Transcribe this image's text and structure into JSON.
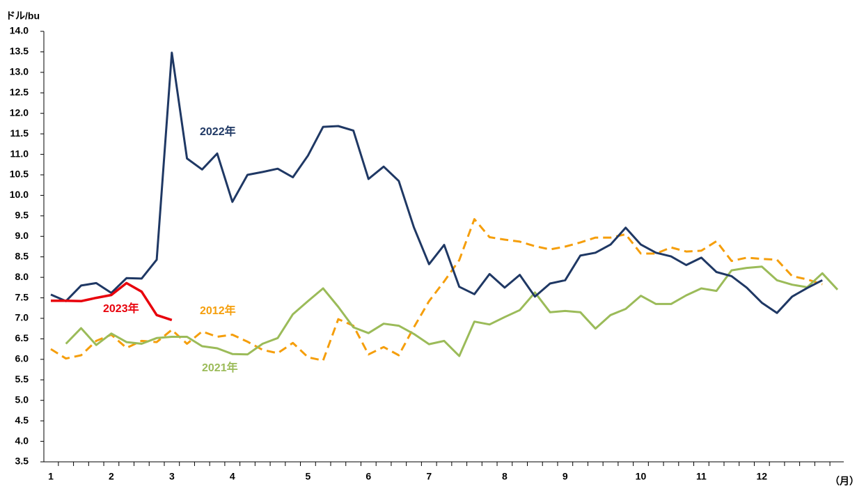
{
  "chart_data": {
    "type": "line",
    "y_label": "ドル/bu",
    "x_label": "（月）",
    "categories": [
      "1",
      null,
      null,
      null,
      "2",
      null,
      null,
      null,
      "3",
      null,
      null,
      null,
      "4",
      null,
      null,
      null,
      null,
      "5",
      null,
      null,
      null,
      "6",
      null,
      null,
      null,
      "7",
      null,
      null,
      null,
      null,
      "8",
      null,
      null,
      null,
      "9",
      null,
      null,
      null,
      null,
      "10",
      null,
      null,
      null,
      "11",
      null,
      null,
      null,
      "12",
      null,
      null,
      null,
      null,
      null
    ],
    "ylim": [
      3.5,
      14.0
    ],
    "yticks": [
      {
        "value": 3.5,
        "label": "3.5"
      },
      {
        "value": 4,
        "label": "4.0"
      },
      {
        "value": 4.5,
        "label": "4.5"
      },
      {
        "value": 5,
        "label": "5.0"
      },
      {
        "value": 5.5,
        "label": "5.5"
      },
      {
        "value": 6,
        "label": "6.0"
      },
      {
        "value": 6.5,
        "label": "6.5"
      },
      {
        "value": 7,
        "label": "7.0"
      },
      {
        "value": 7.5,
        "label": "7.5"
      },
      {
        "value": 8,
        "label": "8.0"
      },
      {
        "value": 8.5,
        "label": "8.5"
      },
      {
        "value": 9,
        "label": "9.0"
      },
      {
        "value": 9.5,
        "label": "9.5"
      },
      {
        "value": 10,
        "label": "10.0"
      },
      {
        "value": 10.5,
        "label": "10.5"
      },
      {
        "value": 11,
        "label": "11.0"
      },
      {
        "value": 11.5,
        "label": "11.5"
      },
      {
        "value": 12,
        "label": "12.0"
      },
      {
        "value": 12.5,
        "label": "12.5"
      },
      {
        "value": 13,
        "label": "13.0"
      },
      {
        "value": 13.5,
        "label": "13.5"
      },
      {
        "value": 14,
        "label": "14.0"
      }
    ],
    "grid": false,
    "series": [
      {
        "name": "2012年",
        "color": "#f59e0b",
        "line_style": "dashed",
        "values": [
          6.25,
          6.02,
          6.1,
          6.45,
          6.6,
          6.28,
          6.45,
          6.42,
          6.72,
          6.38,
          6.68,
          6.55,
          6.6,
          6.43,
          6.23,
          6.15,
          6.4,
          6.05,
          5.97,
          6.98,
          6.82,
          6.12,
          6.3,
          6.1,
          6.78,
          7.42,
          7.9,
          8.42,
          9.42,
          8.98,
          8.92,
          8.87,
          8.76,
          8.68,
          8.75,
          8.85,
          8.97,
          8.97,
          9.05,
          8.58,
          8.58,
          8.73,
          8.63,
          8.65,
          8.88,
          8.4,
          8.48,
          8.45,
          8.43,
          8.03,
          7.95,
          7.83,
          null
        ]
      },
      {
        "name": "2021年",
        "color": "#9bbb59",
        "line_style": "solid",
        "values": [
          null,
          6.38,
          6.76,
          6.35,
          6.63,
          6.42,
          6.38,
          6.52,
          6.55,
          6.55,
          6.32,
          6.27,
          6.13,
          6.12,
          6.38,
          6.52,
          7.1,
          7.42,
          7.73,
          7.28,
          6.78,
          6.64,
          6.87,
          6.82,
          6.62,
          6.37,
          6.45,
          6.08,
          6.92,
          6.85,
          7.03,
          7.2,
          7.63,
          7.15,
          7.18,
          7.15,
          6.75,
          7.08,
          7.23,
          7.55,
          7.35,
          7.35,
          7.56,
          7.73,
          7.67,
          8.17,
          8.23,
          8.26,
          7.93,
          7.82,
          7.76,
          8.1,
          7.7
        ]
      },
      {
        "name": "2022年",
        "color": "#1f3864",
        "line_style": "solid",
        "values": [
          7.58,
          7.42,
          7.8,
          7.86,
          7.62,
          7.98,
          7.97,
          8.43,
          13.48,
          10.9,
          10.63,
          11.02,
          9.84,
          10.5,
          10.57,
          10.65,
          10.44,
          10.97,
          11.67,
          11.69,
          11.58,
          10.4,
          10.7,
          10.35,
          9.22,
          8.32,
          8.79,
          7.77,
          7.59,
          8.08,
          7.75,
          8.06,
          7.53,
          7.85,
          7.93,
          8.53,
          8.6,
          8.8,
          9.21,
          8.8,
          8.6,
          8.51,
          8.3,
          8.48,
          8.13,
          8.03,
          7.75,
          7.38,
          7.13,
          7.53,
          7.74,
          7.93,
          null
        ]
      },
      {
        "name": "2023年",
        "color": "#e8000b",
        "line_style": "solid",
        "values": [
          7.43,
          7.43,
          7.42,
          7.5,
          7.57,
          7.86,
          7.65,
          7.08,
          6.96,
          null,
          null,
          null,
          null,
          null,
          null,
          null,
          null,
          null,
          null,
          null,
          null,
          null,
          null,
          null,
          null,
          null,
          null,
          null,
          null,
          null,
          null,
          null,
          null,
          null,
          null,
          null,
          null,
          null,
          null,
          null,
          null,
          null,
          null,
          null,
          null,
          null,
          null,
          null,
          null,
          null,
          null,
          null,
          null
        ]
      }
    ]
  }
}
